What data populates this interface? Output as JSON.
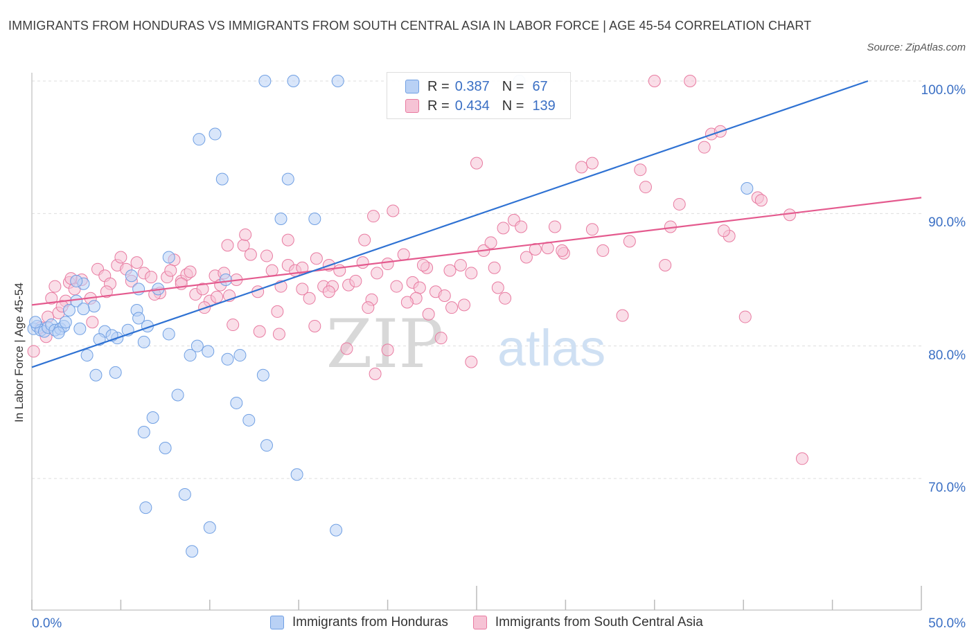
{
  "title": "IMMIGRANTS FROM HONDURAS VS IMMIGRANTS FROM SOUTH CENTRAL ASIA IN LABOR FORCE | AGE 45-54 CORRELATION CHART",
  "source": "Source: ZipAtlas.com",
  "watermark": "ZIPatlas",
  "colors": {
    "blue": "#6f9fe3",
    "blue_fill": "#b9d1f5",
    "pink": "#e87aa0",
    "pink_fill": "#f6c3d5",
    "blue_line": "#2f72d3",
    "pink_line": "#e45a8e",
    "tick_text": "#3a6fc4"
  },
  "legend_top": {
    "rows": [
      {
        "r_label": "R =",
        "r_value": "0.387",
        "n_label": "N =",
        "n_value": "67"
      },
      {
        "r_label": "R =",
        "r_value": "0.434",
        "n_label": "N =",
        "n_value": "139"
      }
    ]
  },
  "legend_bottom": [
    "Immigrants from Honduras",
    "Immigrants from South Central Asia"
  ],
  "chart_data": {
    "type": "scatter",
    "title": "IMMIGRANTS FROM HONDURAS VS IMMIGRANTS FROM SOUTH CENTRAL ASIA IN LABOR FORCE | AGE 45-54 CORRELATION CHART",
    "ylabel": "In Labor Force | Age 45-54",
    "xlabel": "",
    "xlim": [
      0,
      50
    ],
    "ylim": [
      60,
      100
    ],
    "x_tick_labels": [
      "0.0%",
      "50.0%"
    ],
    "y_tick_labels": [
      "100.0%",
      "90.0%",
      "80.0%",
      "70.0%"
    ],
    "y_ticks": [
      100,
      90,
      80,
      70
    ],
    "grid": true,
    "legend_position": "bottom",
    "series": [
      {
        "name": "Immigrants from Honduras",
        "color": "#6f9fe3",
        "trend": {
          "x": [
            0,
            47
          ],
          "y": [
            78.4,
            100
          ]
        },
        "points": [
          [
            0.1,
            81.3
          ],
          [
            0.3,
            81.5
          ],
          [
            0.5,
            81.2
          ],
          [
            0.7,
            81.1
          ],
          [
            0.9,
            81.4
          ],
          [
            1.1,
            81.6
          ],
          [
            1.3,
            81.2
          ],
          [
            1.6,
            81.3
          ],
          [
            1.8,
            81.5
          ],
          [
            1.5,
            81.0
          ],
          [
            2.1,
            82.7
          ],
          [
            2.5,
            83.4
          ],
          [
            2.9,
            84.7
          ],
          [
            3.5,
            83.0
          ],
          [
            4.1,
            81.1
          ],
          [
            3.1,
            79.3
          ],
          [
            3.6,
            77.8
          ],
          [
            4.7,
            78.0
          ],
          [
            4.8,
            80.6
          ],
          [
            5.4,
            81.2
          ],
          [
            6.3,
            80.3
          ],
          [
            6.5,
            81.5
          ],
          [
            7.7,
            80.9
          ],
          [
            8.9,
            79.3
          ],
          [
            9.9,
            79.6
          ],
          [
            11.0,
            79.0
          ],
          [
            11.7,
            79.3
          ],
          [
            10.9,
            85.0
          ],
          [
            7.7,
            86.7
          ],
          [
            6.0,
            84.3
          ],
          [
            5.6,
            85.3
          ],
          [
            5.9,
            82.7
          ],
          [
            7.1,
            84.3
          ],
          [
            2.5,
            84.9
          ],
          [
            2.9,
            82.8
          ],
          [
            6.8,
            74.6
          ],
          [
            6.3,
            73.5
          ],
          [
            7.5,
            72.3
          ],
          [
            8.2,
            76.3
          ],
          [
            8.6,
            68.8
          ],
          [
            6.4,
            67.8
          ],
          [
            10.0,
            66.3
          ],
          [
            9.0,
            64.5
          ],
          [
            11.5,
            75.7
          ],
          [
            12.2,
            74.4
          ],
          [
            13.0,
            77.8
          ],
          [
            13.2,
            72.5
          ],
          [
            14.9,
            70.3
          ],
          [
            17.1,
            66.1
          ],
          [
            9.4,
            95.6
          ],
          [
            10.3,
            96.0
          ],
          [
            10.7,
            92.6
          ],
          [
            14.4,
            92.6
          ],
          [
            14.0,
            89.6
          ],
          [
            15.9,
            89.6
          ],
          [
            13.1,
            100
          ],
          [
            14.7,
            100
          ],
          [
            17.2,
            100
          ],
          [
            27.4,
            100
          ],
          [
            40.2,
            91.9
          ],
          [
            4.5,
            80.8
          ],
          [
            3.8,
            80.5
          ],
          [
            2.7,
            81.3
          ],
          [
            1.9,
            81.8
          ],
          [
            9.3,
            80.0
          ],
          [
            6.0,
            82.1
          ],
          [
            0.2,
            81.8
          ]
        ]
      },
      {
        "name": "Immigrants from South Central Asia",
        "color": "#e87aa0",
        "trend": {
          "x": [
            0,
            50
          ],
          "y": [
            83.1,
            91.2
          ]
        },
        "points": [
          [
            0.1,
            79.6
          ],
          [
            0.5,
            81.4
          ],
          [
            0.9,
            82.2
          ],
          [
            1.1,
            83.6
          ],
          [
            1.3,
            84.5
          ],
          [
            1.5,
            82.5
          ],
          [
            1.9,
            83.4
          ],
          [
            2.1,
            84.8
          ],
          [
            2.4,
            84.3
          ],
          [
            2.8,
            85.0
          ],
          [
            3.3,
            83.6
          ],
          [
            3.7,
            85.8
          ],
          [
            4.1,
            85.3
          ],
          [
            4.4,
            84.7
          ],
          [
            4.8,
            86.1
          ],
          [
            5.3,
            85.8
          ],
          [
            5.6,
            84.9
          ],
          [
            5.9,
            86.3
          ],
          [
            6.3,
            85.5
          ],
          [
            6.7,
            85.2
          ],
          [
            7.2,
            84.0
          ],
          [
            7.6,
            85.2
          ],
          [
            8.0,
            86.5
          ],
          [
            8.4,
            84.9
          ],
          [
            8.7,
            85.4
          ],
          [
            9.2,
            83.9
          ],
          [
            9.6,
            84.3
          ],
          [
            10.0,
            83.4
          ],
          [
            10.3,
            85.3
          ],
          [
            10.8,
            85.5
          ],
          [
            11.1,
            83.8
          ],
          [
            11.5,
            85.0
          ],
          [
            11.9,
            87.6
          ],
          [
            12.3,
            86.9
          ],
          [
            12.7,
            84.1
          ],
          [
            13.2,
            86.8
          ],
          [
            13.5,
            85.7
          ],
          [
            14.0,
            84.5
          ],
          [
            14.4,
            86.1
          ],
          [
            14.8,
            85.7
          ],
          [
            15.2,
            85.9
          ],
          [
            15.6,
            83.6
          ],
          [
            16.0,
            86.6
          ],
          [
            16.4,
            84.5
          ],
          [
            16.9,
            84.5
          ],
          [
            17.3,
            85.7
          ],
          [
            17.8,
            84.6
          ],
          [
            18.2,
            84.9
          ],
          [
            18.6,
            86.3
          ],
          [
            19.1,
            83.5
          ],
          [
            19.4,
            85.5
          ],
          [
            20.0,
            86.2
          ],
          [
            20.5,
            84.5
          ],
          [
            20.9,
            86.9
          ],
          [
            21.4,
            84.8
          ],
          [
            21.8,
            84.4
          ],
          [
            22.2,
            85.9
          ],
          [
            22.7,
            84.1
          ],
          [
            23.2,
            83.8
          ],
          [
            23.6,
            82.9
          ],
          [
            24.1,
            86.1
          ],
          [
            24.7,
            85.5
          ],
          [
            25.4,
            87.2
          ],
          [
            25.8,
            87.8
          ],
          [
            26.2,
            84.4
          ],
          [
            26.5,
            88.9
          ],
          [
            27.1,
            89.5
          ],
          [
            27.5,
            89.0
          ],
          [
            28.3,
            87.3
          ],
          [
            29.0,
            87.4
          ],
          [
            29.4,
            89.0
          ],
          [
            29.9,
            87.0
          ],
          [
            30.9,
            93.5
          ],
          [
            31.5,
            88.8
          ],
          [
            32.1,
            87.2
          ],
          [
            33.6,
            87.9
          ],
          [
            34.2,
            93.3
          ],
          [
            34.5,
            92.0
          ],
          [
            35.6,
            86.1
          ],
          [
            35.9,
            89.0
          ],
          [
            36.4,
            90.7
          ],
          [
            37.8,
            95.0
          ],
          [
            38.2,
            96.0
          ],
          [
            38.7,
            96.2
          ],
          [
            39.2,
            88.3
          ],
          [
            40.1,
            82.2
          ],
          [
            40.8,
            91.2
          ],
          [
            42.6,
            89.9
          ],
          [
            43.3,
            71.5
          ],
          [
            33.2,
            82.3
          ],
          [
            13.9,
            80.9
          ],
          [
            16.7,
            84.1
          ],
          [
            19.3,
            77.9
          ],
          [
            21.6,
            83.6
          ],
          [
            22.3,
            82.4
          ],
          [
            23.0,
            80.6
          ],
          [
            24.3,
            83.1
          ],
          [
            26.6,
            83.6
          ],
          [
            15.9,
            81.5
          ],
          [
            17.7,
            79.8
          ],
          [
            18.9,
            82.9
          ],
          [
            13.8,
            82.6
          ],
          [
            12.8,
            81.1
          ],
          [
            11.3,
            81.6
          ],
          [
            10.6,
            84.6
          ],
          [
            9.7,
            82.9
          ],
          [
            6.9,
            83.9
          ],
          [
            4.2,
            84.1
          ],
          [
            3.4,
            81.8
          ],
          [
            1.7,
            83.0
          ],
          [
            0.8,
            80.7
          ],
          [
            2.2,
            85.1
          ],
          [
            5.0,
            86.7
          ],
          [
            7.8,
            85.7
          ],
          [
            8.9,
            85.6
          ],
          [
            12.0,
            88.4
          ],
          [
            11.0,
            87.6
          ],
          [
            14.4,
            88.0
          ],
          [
            16.7,
            86.1
          ],
          [
            18.7,
            88.0
          ],
          [
            19.2,
            89.8
          ],
          [
            20.3,
            90.2
          ],
          [
            22.0,
            86.1
          ],
          [
            23.5,
            85.7
          ],
          [
            25.0,
            93.8
          ],
          [
            26.0,
            85.9
          ],
          [
            27.8,
            86.7
          ],
          [
            31.5,
            93.8
          ],
          [
            35.0,
            100
          ],
          [
            37.0,
            100
          ],
          [
            38.9,
            88.7
          ],
          [
            41.0,
            91.0
          ],
          [
            29.8,
            87.2
          ],
          [
            21.1,
            83.3
          ],
          [
            20.0,
            79.7
          ],
          [
            24.7,
            78.8
          ],
          [
            15.2,
            84.3
          ],
          [
            10.4,
            83.7
          ],
          [
            8.4,
            84.7
          ]
        ]
      }
    ]
  }
}
